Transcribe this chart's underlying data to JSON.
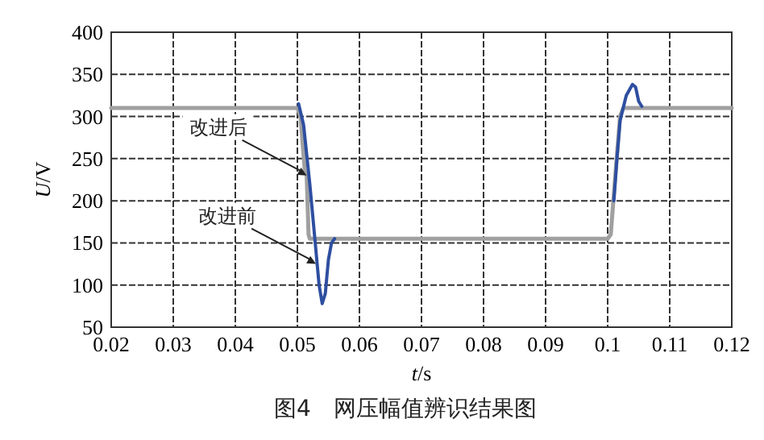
{
  "chart_data": {
    "type": "line",
    "xlabel": "*t*/s",
    "ylabel": "*U*/V",
    "xlim": [
      0.02,
      0.12
    ],
    "ylim": [
      50,
      400
    ],
    "xticks": [
      0.02,
      0.03,
      0.04,
      0.05,
      0.06,
      0.07,
      0.08,
      0.09,
      {
        "value": 0.1,
        "label": "0.1"
      },
      0.11,
      0.12
    ],
    "yticks": [
      50,
      100,
      150,
      200,
      250,
      300,
      350,
      400
    ],
    "grid": true,
    "series": [
      {
        "color": "#2e4fa0",
        "x": [
          0.0502,
          0.051,
          0.052,
          0.053,
          0.0535,
          0.054,
          0.0545,
          0.055,
          0.0555,
          0.056,
          null,
          0.101,
          0.1015,
          0.102,
          0.103,
          0.104,
          0.1045,
          0.105,
          0.1055
        ],
        "values": [
          315,
          290,
          220,
          140,
          100,
          78,
          90,
          130,
          150,
          155,
          null,
          200,
          250,
          295,
          325,
          338,
          335,
          318,
          312
        ]
      },
      {
        "color": "#a0a0a0",
        "x": [
          0.02,
          0.05,
          0.0505,
          0.0512,
          0.0515,
          0.0518,
          0.052,
          0.1,
          0.1005,
          0.1015,
          0.102,
          0.1025,
          0.12
        ],
        "values": [
          310,
          310,
          300,
          235,
          230,
          160,
          155,
          155,
          160,
          255,
          300,
          310,
          310
        ]
      }
    ],
    "annotations": [
      {
        "text": "改进后",
        "x": 0.0515,
        "y": 230
      },
      {
        "text": "改进前",
        "x": 0.053,
        "y": 125
      },
      "图4　网压幅值辨识结果图"
    ]
  }
}
